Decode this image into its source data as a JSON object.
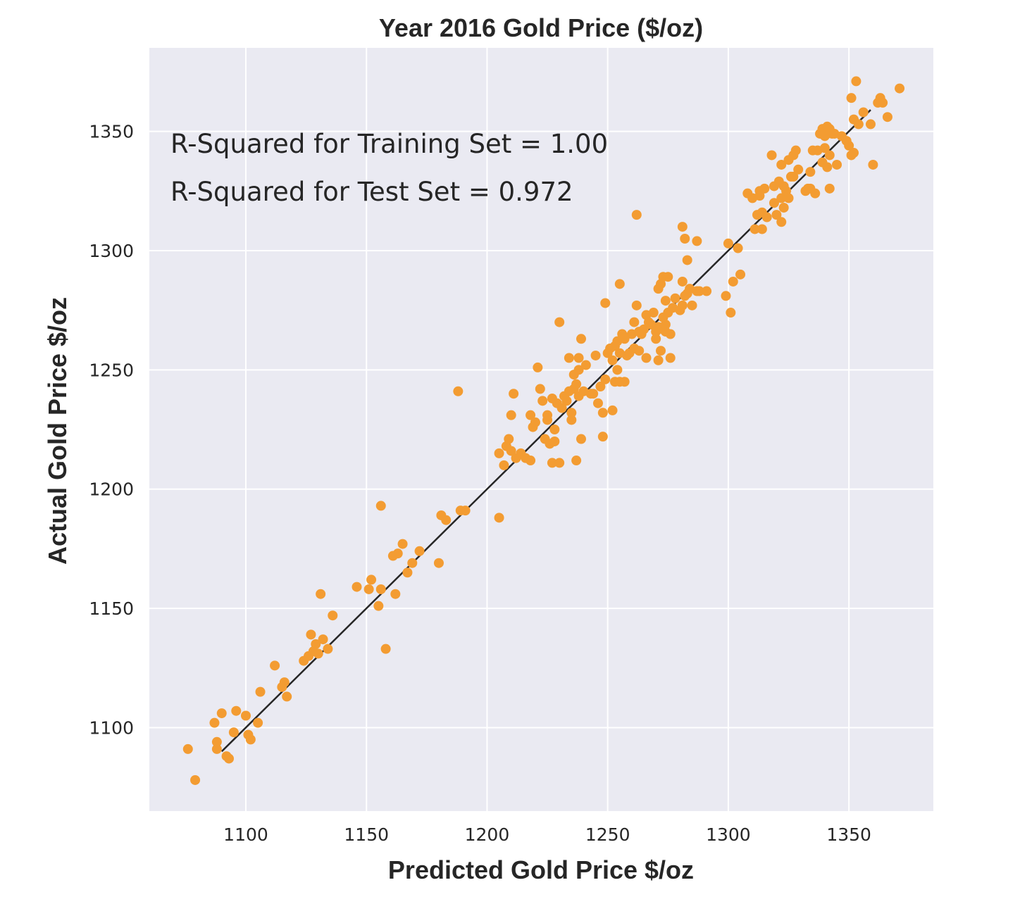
{
  "chart_data": {
    "type": "scatter",
    "title": "Year 2016 Gold Price ($/oz)",
    "xlabel": "Predicted Gold Price $/oz",
    "ylabel": "Actual Gold Price $/oz",
    "xlim": [
      1060,
      1385
    ],
    "ylim": [
      1065,
      1385
    ],
    "xticks": [
      1100,
      1150,
      1200,
      1250,
      1300,
      1350
    ],
    "yticks": [
      1100,
      1150,
      1200,
      1250,
      1300,
      1350
    ],
    "grid": true,
    "background_color": "#eaeaf2",
    "point_color": "#f39c32",
    "line_color": "#262626",
    "annotations": [
      "R-Squared for Training Set = 1.00",
      "R-Squared for Test Set = 0.972"
    ],
    "fit_line": {
      "x": [
        1090,
        1359
      ],
      "y": [
        1090,
        1359
      ]
    },
    "points": [
      [
        1076,
        1091
      ],
      [
        1079,
        1078
      ],
      [
        1087,
        1102
      ],
      [
        1088,
        1094
      ],
      [
        1088,
        1091
      ],
      [
        1090,
        1106
      ],
      [
        1092,
        1088
      ],
      [
        1093,
        1087
      ],
      [
        1095,
        1098
      ],
      [
        1096,
        1107
      ],
      [
        1100,
        1105
      ],
      [
        1101,
        1097
      ],
      [
        1102,
        1095
      ],
      [
        1105,
        1102
      ],
      [
        1106,
        1115
      ],
      [
        1112,
        1126
      ],
      [
        1115,
        1117
      ],
      [
        1116,
        1119
      ],
      [
        1117,
        1113
      ],
      [
        1124,
        1128
      ],
      [
        1126,
        1130
      ],
      [
        1127,
        1139
      ],
      [
        1128,
        1132
      ],
      [
        1129,
        1135
      ],
      [
        1130,
        1131
      ],
      [
        1131,
        1156
      ],
      [
        1132,
        1137
      ],
      [
        1134,
        1133
      ],
      [
        1136,
        1147
      ],
      [
        1146,
        1159
      ],
      [
        1151,
        1158
      ],
      [
        1152,
        1162
      ],
      [
        1155,
        1151
      ],
      [
        1156,
        1158
      ],
      [
        1156,
        1193
      ],
      [
        1158,
        1133
      ],
      [
        1161,
        1172
      ],
      [
        1162,
        1156
      ],
      [
        1163,
        1173
      ],
      [
        1165,
        1177
      ],
      [
        1167,
        1165
      ],
      [
        1169,
        1169
      ],
      [
        1172,
        1174
      ],
      [
        1180,
        1169
      ],
      [
        1181,
        1189
      ],
      [
        1183,
        1187
      ],
      [
        1188,
        1241
      ],
      [
        1189,
        1191
      ],
      [
        1191,
        1191
      ],
      [
        1205,
        1188
      ],
      [
        1205,
        1215
      ],
      [
        1207,
        1210
      ],
      [
        1208,
        1218
      ],
      [
        1209,
        1221
      ],
      [
        1210,
        1216
      ],
      [
        1210,
        1231
      ],
      [
        1211,
        1240
      ],
      [
        1212,
        1213
      ],
      [
        1214,
        1215
      ],
      [
        1216,
        1213
      ],
      [
        1218,
        1231
      ],
      [
        1218,
        1212
      ],
      [
        1219,
        1226
      ],
      [
        1220,
        1228
      ],
      [
        1221,
        1251
      ],
      [
        1222,
        1242
      ],
      [
        1223,
        1237
      ],
      [
        1224,
        1221
      ],
      [
        1225,
        1231
      ],
      [
        1225,
        1229
      ],
      [
        1226,
        1219
      ],
      [
        1227,
        1238
      ],
      [
        1227,
        1211
      ],
      [
        1228,
        1225
      ],
      [
        1228,
        1220
      ],
      [
        1229,
        1236
      ],
      [
        1230,
        1270
      ],
      [
        1230,
        1211
      ],
      [
        1231,
        1234
      ],
      [
        1232,
        1239
      ],
      [
        1233,
        1237
      ],
      [
        1234,
        1241
      ],
      [
        1234,
        1255
      ],
      [
        1235,
        1232
      ],
      [
        1235,
        1229
      ],
      [
        1236,
        1242
      ],
      [
        1236,
        1248
      ],
      [
        1237,
        1244
      ],
      [
        1237,
        1212
      ],
      [
        1238,
        1255
      ],
      [
        1238,
        1250
      ],
      [
        1238,
        1239
      ],
      [
        1239,
        1263
      ],
      [
        1239,
        1221
      ],
      [
        1240,
        1241
      ],
      [
        1241,
        1252
      ],
      [
        1243,
        1240
      ],
      [
        1244,
        1240
      ],
      [
        1245,
        1256
      ],
      [
        1246,
        1236
      ],
      [
        1247,
        1243
      ],
      [
        1248,
        1232
      ],
      [
        1248,
        1222
      ],
      [
        1249,
        1246
      ],
      [
        1249,
        1278
      ],
      [
        1250,
        1257
      ],
      [
        1251,
        1259
      ],
      [
        1252,
        1254
      ],
      [
        1252,
        1233
      ],
      [
        1253,
        1245
      ],
      [
        1253,
        1260
      ],
      [
        1254,
        1250
      ],
      [
        1254,
        1262
      ],
      [
        1255,
        1257
      ],
      [
        1255,
        1245
      ],
      [
        1255,
        1286
      ],
      [
        1256,
        1265
      ],
      [
        1257,
        1263
      ],
      [
        1257,
        1245
      ],
      [
        1258,
        1256
      ],
      [
        1259,
        1257
      ],
      [
        1260,
        1265
      ],
      [
        1261,
        1270
      ],
      [
        1261,
        1259
      ],
      [
        1262,
        1277
      ],
      [
        1262,
        1315
      ],
      [
        1263,
        1258
      ],
      [
        1263,
        1266
      ],
      [
        1264,
        1265
      ],
      [
        1265,
        1267
      ],
      [
        1266,
        1273
      ],
      [
        1266,
        1255
      ],
      [
        1267,
        1270
      ],
      [
        1268,
        1269
      ],
      [
        1269,
        1274
      ],
      [
        1270,
        1263
      ],
      [
        1270,
        1266
      ],
      [
        1271,
        1254
      ],
      [
        1271,
        1268
      ],
      [
        1271,
        1284
      ],
      [
        1272,
        1258
      ],
      [
        1272,
        1286
      ],
      [
        1273,
        1267
      ],
      [
        1273,
        1272
      ],
      [
        1273,
        1289
      ],
      [
        1274,
        1266
      ],
      [
        1274,
        1279
      ],
      [
        1274,
        1269
      ],
      [
        1275,
        1289
      ],
      [
        1275,
        1274
      ],
      [
        1276,
        1255
      ],
      [
        1276,
        1265
      ],
      [
        1277,
        1276
      ],
      [
        1278,
        1280
      ],
      [
        1280,
        1275
      ],
      [
        1281,
        1277
      ],
      [
        1281,
        1310
      ],
      [
        1281,
        1287
      ],
      [
        1282,
        1305
      ],
      [
        1282,
        1281
      ],
      [
        1283,
        1282
      ],
      [
        1283,
        1296
      ],
      [
        1284,
        1284
      ],
      [
        1285,
        1277
      ],
      [
        1287,
        1283
      ],
      [
        1287,
        1304
      ],
      [
        1288,
        1283
      ],
      [
        1291,
        1283
      ],
      [
        1299,
        1281
      ],
      [
        1300,
        1303
      ],
      [
        1301,
        1274
      ],
      [
        1302,
        1287
      ],
      [
        1304,
        1301
      ],
      [
        1305,
        1290
      ],
      [
        1308,
        1324
      ],
      [
        1310,
        1322
      ],
      [
        1311,
        1309
      ],
      [
        1312,
        1315
      ],
      [
        1313,
        1325
      ],
      [
        1313,
        1323
      ],
      [
        1314,
        1316
      ],
      [
        1314,
        1309
      ],
      [
        1315,
        1326
      ],
      [
        1316,
        1314
      ],
      [
        1318,
        1340
      ],
      [
        1319,
        1327
      ],
      [
        1319,
        1320
      ],
      [
        1320,
        1315
      ],
      [
        1321,
        1329
      ],
      [
        1322,
        1336
      ],
      [
        1322,
        1322
      ],
      [
        1322,
        1312
      ],
      [
        1323,
        1318
      ],
      [
        1323,
        1327
      ],
      [
        1324,
        1325
      ],
      [
        1325,
        1322
      ],
      [
        1325,
        1338
      ],
      [
        1326,
        1331
      ],
      [
        1327,
        1340
      ],
      [
        1327,
        1331
      ],
      [
        1328,
        1342
      ],
      [
        1329,
        1334
      ],
      [
        1332,
        1325
      ],
      [
        1333,
        1326
      ],
      [
        1334,
        1333
      ],
      [
        1334,
        1326
      ],
      [
        1335,
        1342
      ],
      [
        1336,
        1324
      ],
      [
        1337,
        1342
      ],
      [
        1338,
        1349
      ],
      [
        1339,
        1351
      ],
      [
        1339,
        1337
      ],
      [
        1340,
        1343
      ],
      [
        1340,
        1348
      ],
      [
        1341,
        1335
      ],
      [
        1341,
        1352
      ],
      [
        1342,
        1351
      ],
      [
        1342,
        1340
      ],
      [
        1342,
        1326
      ],
      [
        1343,
        1349
      ],
      [
        1344,
        1349
      ],
      [
        1345,
        1336
      ],
      [
        1347,
        1348
      ],
      [
        1349,
        1346
      ],
      [
        1350,
        1344
      ],
      [
        1351,
        1340
      ],
      [
        1351,
        1364
      ],
      [
        1352,
        1355
      ],
      [
        1352,
        1341
      ],
      [
        1353,
        1371
      ],
      [
        1354,
        1353
      ],
      [
        1356,
        1358
      ],
      [
        1359,
        1353
      ],
      [
        1360,
        1336
      ],
      [
        1362,
        1362
      ],
      [
        1363,
        1363
      ],
      [
        1363,
        1364
      ],
      [
        1364,
        1362
      ],
      [
        1366,
        1356
      ],
      [
        1371,
        1368
      ]
    ]
  }
}
